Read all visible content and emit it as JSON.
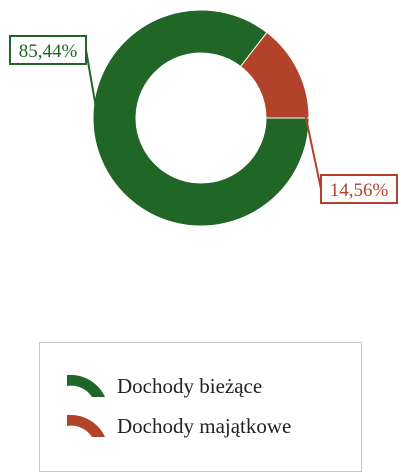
{
  "chart_data": {
    "type": "pie",
    "variant": "donut",
    "title": "",
    "categories": [
      "Dochody bieżące",
      "Dochody majątkowe"
    ],
    "values": [
      85.44,
      14.56
    ],
    "value_labels": [
      "85,44%",
      "14,56%"
    ],
    "unit": "%",
    "colors": [
      "#1f6627",
      "#b0432a"
    ],
    "legend_placement": "bottom",
    "data_labels": "outside-boxed-with-leader-lines"
  }
}
